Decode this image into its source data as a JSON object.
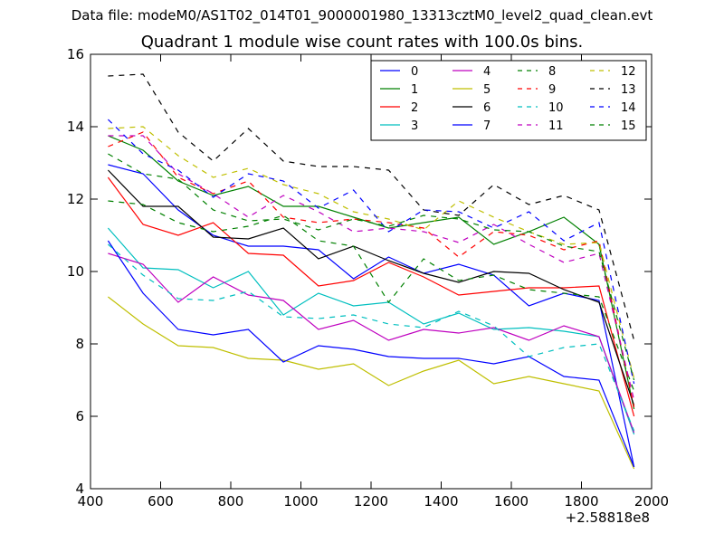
{
  "header": {
    "file_line": "Data file: modeM0/AS1T02_014T01_9000001980_13313cztM0_level2_quad_clean.evt"
  },
  "chart_data": {
    "type": "line",
    "title": "Quadrant 1 module wise count rates with 100.0s bins.",
    "xlabel": "",
    "ylabel": "",
    "x_offset_label": "+2.58818e8",
    "xlim": [
      400,
      2000
    ],
    "ylim": [
      4,
      16
    ],
    "x_ticks": [
      "400",
      "600",
      "800",
      "1000",
      "1200",
      "1400",
      "1600",
      "1800",
      "2000"
    ],
    "y_ticks": [
      "4",
      "6",
      "8",
      "10",
      "12",
      "14",
      "16"
    ],
    "grid": false,
    "legend_position": "top-right",
    "legend_columns": 4,
    "x": [
      450,
      550,
      650,
      750,
      850,
      950,
      1050,
      1150,
      1250,
      1350,
      1450,
      1550,
      1650,
      1750,
      1850,
      1950
    ],
    "series": [
      {
        "name": "0",
        "color": "#0000ff",
        "dash": false,
        "values": [
          12.95,
          12.7,
          11.7,
          11.0,
          10.7,
          10.7,
          10.6,
          9.8,
          10.4,
          9.95,
          10.2,
          9.9,
          9.05,
          9.4,
          9.2,
          4.6
        ]
      },
      {
        "name": "1",
        "color": "#008000",
        "dash": false,
        "values": [
          13.75,
          13.35,
          12.5,
          12.1,
          12.35,
          11.8,
          11.8,
          11.5,
          11.2,
          11.35,
          11.5,
          10.75,
          11.1,
          11.5,
          10.75,
          6.2
        ]
      },
      {
        "name": "2",
        "color": "#ff0000",
        "dash": false,
        "values": [
          12.6,
          11.3,
          11.0,
          11.35,
          10.5,
          10.45,
          9.6,
          9.75,
          10.25,
          9.85,
          9.35,
          9.45,
          9.55,
          9.55,
          9.6,
          6.0
        ]
      },
      {
        "name": "3",
        "color": "#00bfbf",
        "dash": false,
        "values": [
          11.2,
          10.1,
          10.05,
          9.55,
          10.0,
          8.8,
          9.4,
          9.05,
          9.15,
          8.55,
          8.85,
          8.4,
          8.45,
          8.35,
          8.2,
          5.5
        ]
      },
      {
        "name": "4",
        "color": "#bf00bf",
        "dash": false,
        "values": [
          10.5,
          10.2,
          9.15,
          9.85,
          9.35,
          9.2,
          8.4,
          8.65,
          8.1,
          8.4,
          8.3,
          8.45,
          8.1,
          8.5,
          8.2,
          5.55
        ]
      },
      {
        "name": "5",
        "color": "#bfbf00",
        "dash": false,
        "values": [
          9.3,
          8.55,
          7.95,
          7.9,
          7.6,
          7.55,
          7.3,
          7.45,
          6.85,
          7.25,
          7.55,
          6.9,
          7.1,
          6.9,
          6.7,
          4.55
        ]
      },
      {
        "name": "6",
        "color": "#000000",
        "dash": false,
        "values": [
          12.8,
          11.8,
          11.8,
          10.95,
          10.9,
          11.2,
          10.35,
          10.7,
          10.3,
          9.95,
          9.7,
          10.0,
          9.95,
          9.5,
          9.15,
          6.3
        ]
      },
      {
        "name": "7",
        "color": "#0000ff",
        "dash": false,
        "values": [
          10.85,
          9.4,
          8.4,
          8.25,
          8.4,
          7.5,
          7.95,
          7.85,
          7.65,
          7.6,
          7.6,
          7.45,
          7.65,
          7.1,
          7.0,
          4.6
        ]
      },
      {
        "name": "8",
        "color": "#008000",
        "dash": true,
        "values": [
          11.95,
          11.85,
          11.35,
          11.1,
          11.25,
          11.55,
          10.85,
          10.7,
          9.15,
          10.35,
          9.75,
          9.9,
          9.5,
          9.4,
          9.3,
          6.7
        ]
      },
      {
        "name": "9",
        "color": "#ff0000",
        "dash": true,
        "values": [
          13.45,
          13.85,
          12.6,
          12.15,
          12.5,
          11.5,
          11.35,
          11.45,
          11.35,
          11.2,
          10.4,
          11.1,
          11.0,
          10.6,
          10.85,
          6.25
        ]
      },
      {
        "name": "10",
        "color": "#00bfbf",
        "dash": true,
        "values": [
          10.75,
          9.9,
          9.25,
          9.2,
          9.45,
          8.75,
          8.7,
          8.8,
          8.55,
          8.45,
          8.9,
          8.5,
          7.65,
          7.9,
          8.0,
          5.6
        ]
      },
      {
        "name": "11",
        "color": "#bf00bf",
        "dash": true,
        "values": [
          13.75,
          13.75,
          12.7,
          12.15,
          11.5,
          12.1,
          11.65,
          11.1,
          11.2,
          11.1,
          10.8,
          11.3,
          10.75,
          10.25,
          10.5,
          6.45
        ]
      },
      {
        "name": "12",
        "color": "#bfbf00",
        "dash": true,
        "values": [
          13.95,
          14.0,
          13.2,
          12.6,
          12.85,
          12.4,
          12.15,
          11.65,
          11.45,
          11.15,
          11.95,
          11.5,
          11.1,
          10.75,
          10.8,
          7.05
        ]
      },
      {
        "name": "13",
        "color": "#000000",
        "dash": true,
        "values": [
          15.4,
          15.45,
          13.85,
          13.05,
          13.95,
          13.05,
          12.9,
          12.9,
          12.8,
          11.7,
          11.55,
          12.4,
          11.85,
          12.1,
          11.7,
          8.1
        ]
      },
      {
        "name": "14",
        "color": "#0000ff",
        "dash": true,
        "values": [
          14.2,
          13.25,
          12.8,
          12.05,
          12.7,
          12.5,
          11.75,
          12.25,
          11.1,
          11.7,
          11.65,
          11.2,
          11.65,
          10.85,
          11.35,
          6.9
        ]
      },
      {
        "name": "15",
        "color": "#008000",
        "dash": true,
        "values": [
          13.25,
          12.7,
          12.55,
          11.7,
          11.4,
          11.45,
          11.15,
          11.45,
          11.25,
          11.55,
          11.45,
          11.15,
          11.1,
          10.7,
          10.55,
          7.0
        ]
      }
    ]
  }
}
